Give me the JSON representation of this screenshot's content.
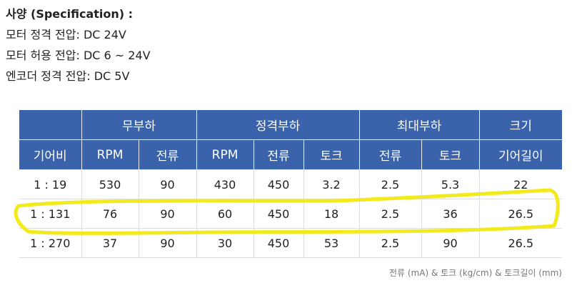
{
  "spec": {
    "title": "사양 (Specification) :",
    "lines": [
      "모터 정격 전압: DC 24V",
      "모터 허용 전압: DC 6 ~ 24V",
      "엔코더 정격 전압: DC 5V"
    ]
  },
  "table": {
    "groups": {
      "no_load": "무부하",
      "rated_load": "정격부하",
      "max_load": "최대부하",
      "size": "크기"
    },
    "columns": [
      "기어비",
      "RPM",
      "전류",
      "RPM",
      "전류",
      "토크",
      "전류",
      "토크",
      "기어길이"
    ],
    "rows": [
      [
        "1 : 19",
        "530",
        "90",
        "430",
        "450",
        "3.2",
        "2.5",
        "5.3",
        "22"
      ],
      [
        "1 : 131",
        "76",
        "90",
        "60",
        "450",
        "18",
        "2.5",
        "36",
        "26.5"
      ],
      [
        "1 : 270",
        "37",
        "90",
        "30",
        "450",
        "53",
        "2.5",
        "90",
        "26.5"
      ]
    ],
    "highlighted_row": "1 : 131"
  },
  "footnote": "전류 (mA) & 토크 (kg/cm) & 토크길이 (mm)",
  "colors": {
    "header_bg": "#3a63ab",
    "highlight": "#f2ea1c"
  }
}
